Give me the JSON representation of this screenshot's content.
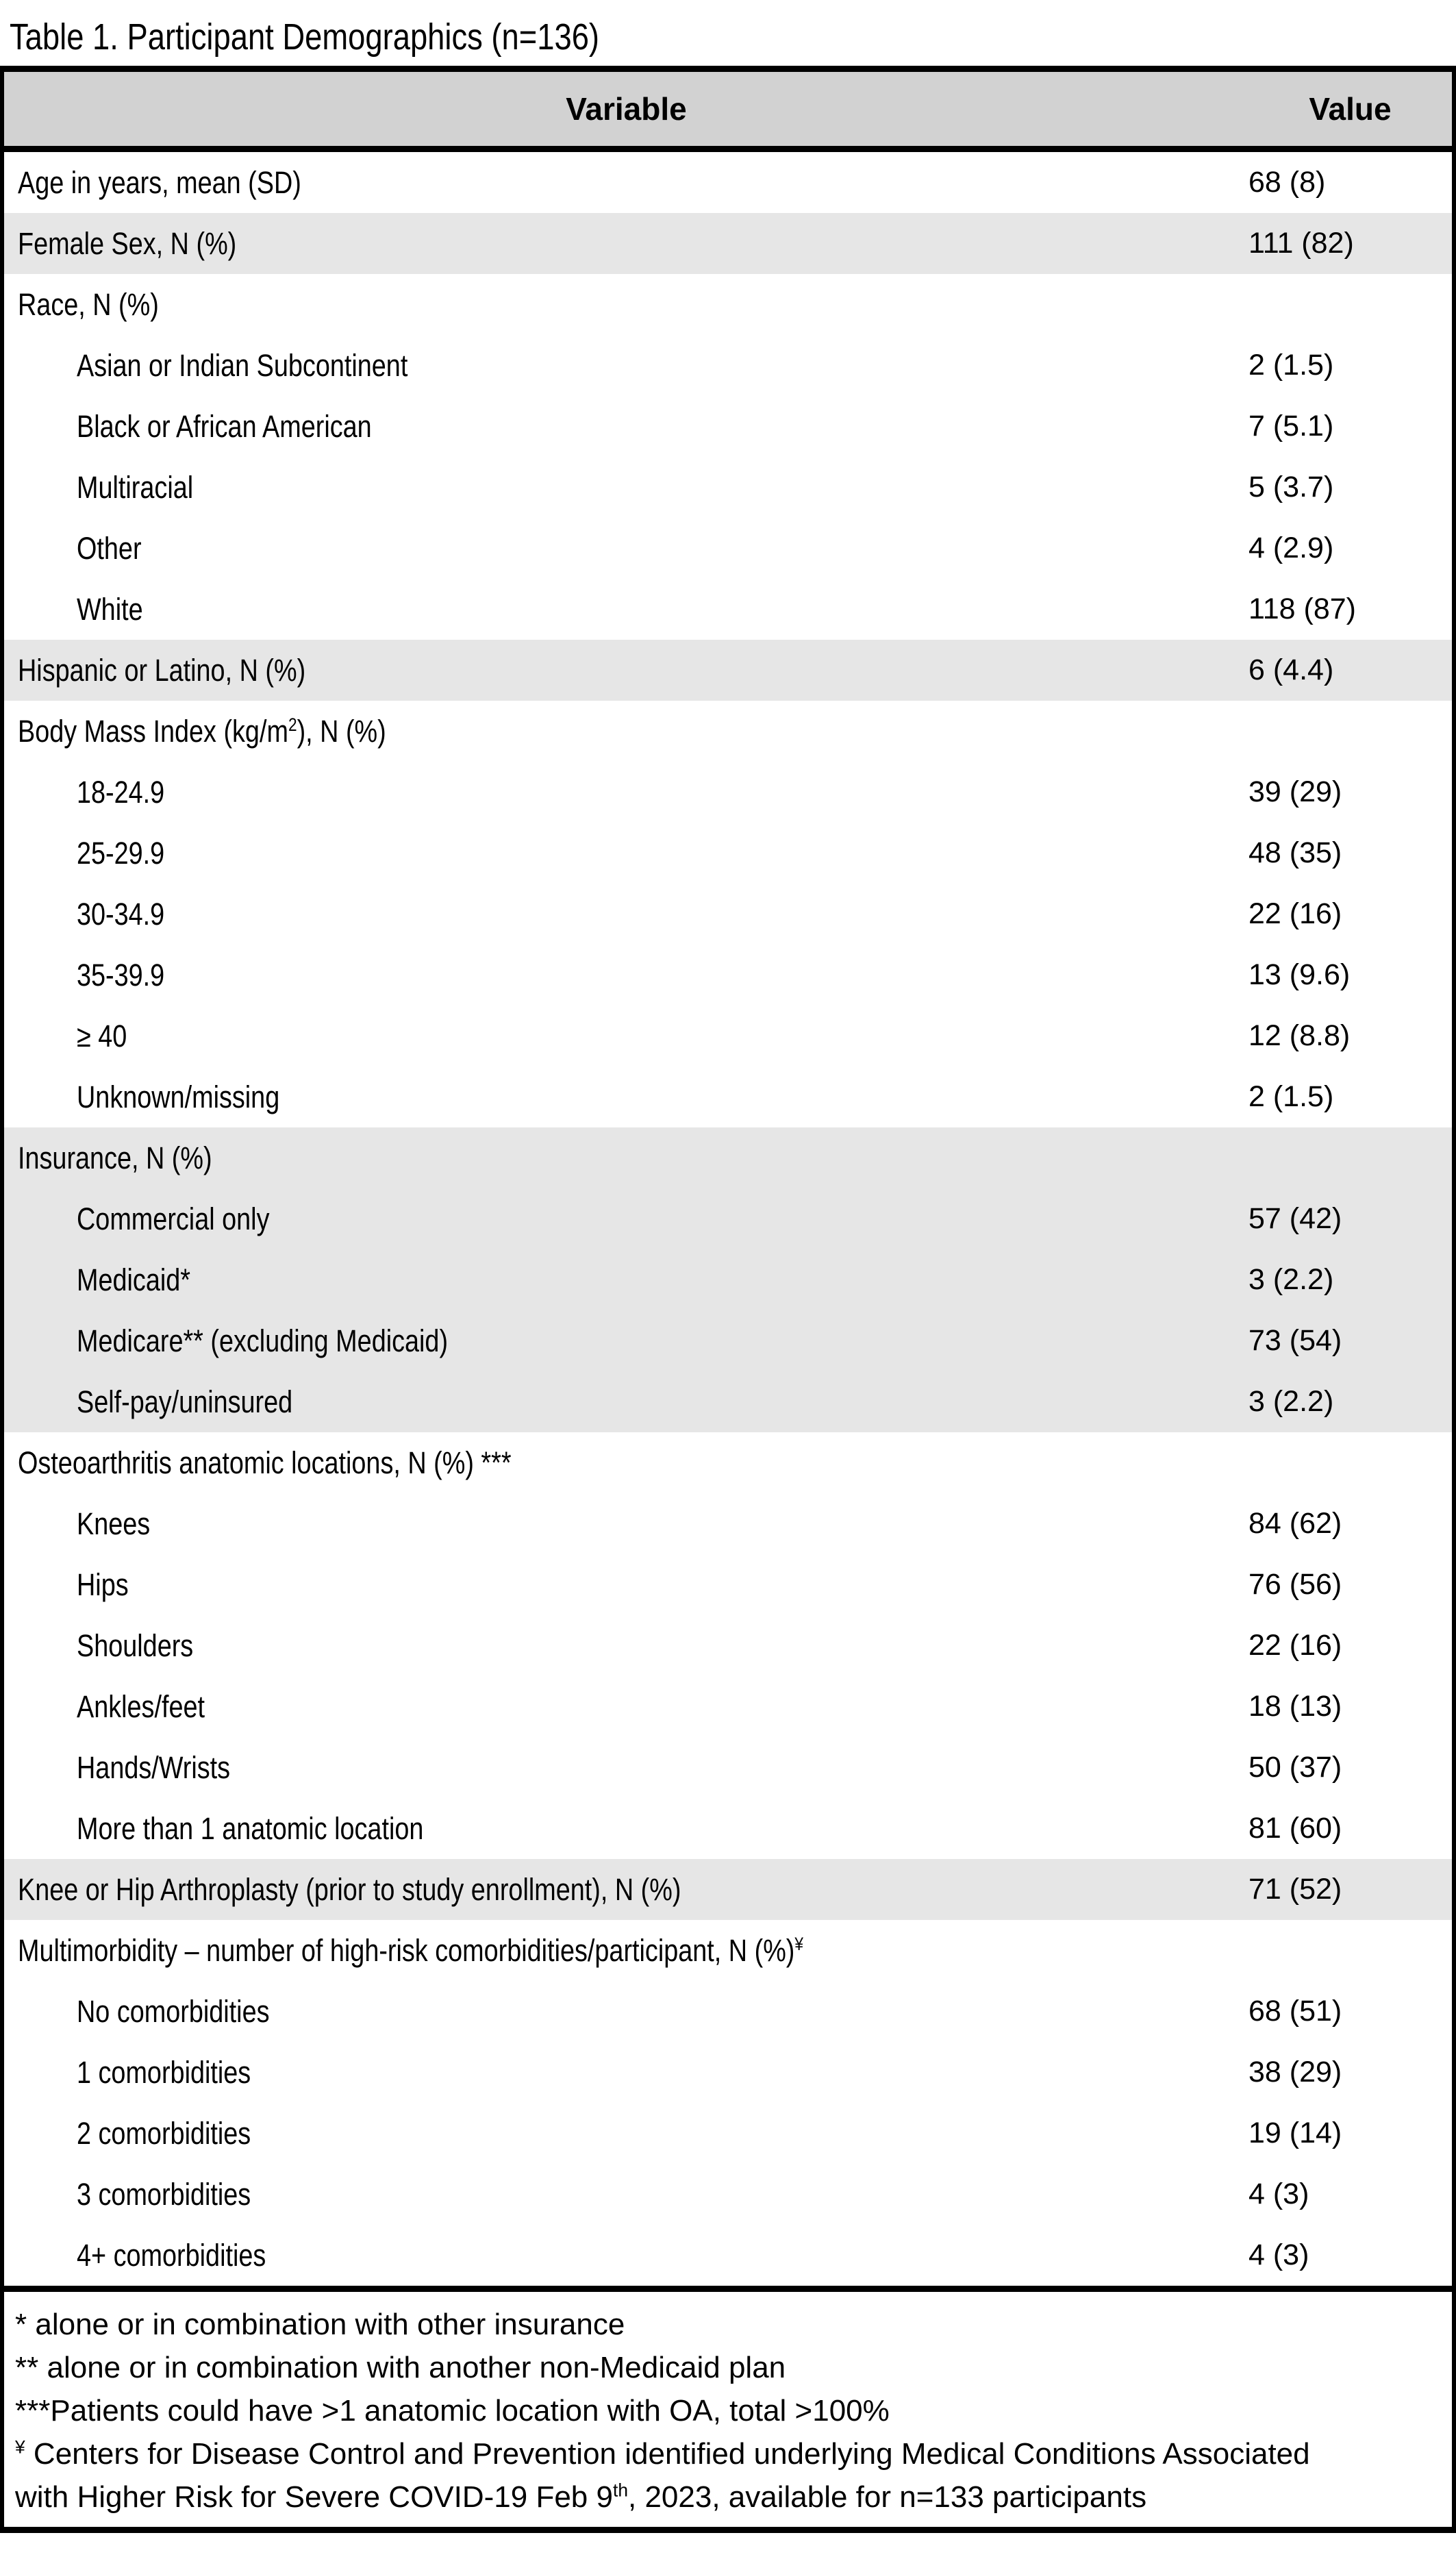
{
  "title": "Table 1. Participant Demographics (n=136)",
  "colors": {
    "header_bg": "#d2d2d2",
    "band_bg": "#e6e6e6",
    "border": "#000000"
  },
  "table": {
    "columns": [
      "Variable",
      "Value"
    ],
    "rows": [
      {
        "label": "Age in years, mean (SD)",
        "value": "68 (8)",
        "indent": false,
        "shaded": false
      },
      {
        "label": "Female Sex, N (%)",
        "value": "111 (82)",
        "indent": false,
        "shaded": true
      },
      {
        "label": "Race, N (%)",
        "value": "",
        "indent": false,
        "shaded": false
      },
      {
        "label": "Asian or Indian Subcontinent",
        "value": "2 (1.5)",
        "indent": true,
        "shaded": false
      },
      {
        "label": "Black or African American",
        "value": "7 (5.1)",
        "indent": true,
        "shaded": false
      },
      {
        "label": "Multiracial",
        "value": "5 (3.7)",
        "indent": true,
        "shaded": false
      },
      {
        "label": "Other",
        "value": "4 (2.9)",
        "indent": true,
        "shaded": false
      },
      {
        "label": "White",
        "value": "118 (87)",
        "indent": true,
        "shaded": false
      },
      {
        "label": "Hispanic or Latino, N (%)",
        "value": "6 (4.4)",
        "indent": false,
        "shaded": true
      },
      {
        "label": "Body Mass Index (kg/m^{2}), N (%)",
        "value": "",
        "indent": false,
        "shaded": false
      },
      {
        "label": "18-24.9",
        "value": "39 (29)",
        "indent": true,
        "shaded": false
      },
      {
        "label": "25-29.9",
        "value": "48 (35)",
        "indent": true,
        "shaded": false
      },
      {
        "label": "30-34.9",
        "value": "22 (16)",
        "indent": true,
        "shaded": false
      },
      {
        "label": "35-39.9",
        "value": "13 (9.6)",
        "indent": true,
        "shaded": false
      },
      {
        "label": "≥ 40",
        "value": "12 (8.8)",
        "indent": true,
        "shaded": false
      },
      {
        "label": "Unknown/missing",
        "value": "2 (1.5)",
        "indent": true,
        "shaded": false
      },
      {
        "label": "Insurance, N (%)",
        "value": "",
        "indent": false,
        "shaded": true
      },
      {
        "label": "Commercial only",
        "value": "57 (42)",
        "indent": true,
        "shaded": true
      },
      {
        "label": "Medicaid*",
        "value": "3 (2.2)",
        "indent": true,
        "shaded": true
      },
      {
        "label": "Medicare** (excluding Medicaid)",
        "value": "73 (54)",
        "indent": true,
        "shaded": true
      },
      {
        "label": "Self-pay/uninsured",
        "value": "3 (2.2)",
        "indent": true,
        "shaded": true
      },
      {
        "label": "Osteoarthritis anatomic locations, N (%) ***",
        "value": "",
        "indent": false,
        "shaded": false
      },
      {
        "label": "Knees",
        "value": "84 (62)",
        "indent": true,
        "shaded": false
      },
      {
        "label": "Hips",
        "value": "76 (56)",
        "indent": true,
        "shaded": false
      },
      {
        "label": "Shoulders",
        "value": "22 (16)",
        "indent": true,
        "shaded": false
      },
      {
        "label": "Ankles/feet",
        "value": "18 (13)",
        "indent": true,
        "shaded": false
      },
      {
        "label": "Hands/Wrists",
        "value": "50 (37)",
        "indent": true,
        "shaded": false
      },
      {
        "label": "More than 1 anatomic location",
        "value": "81 (60)",
        "indent": true,
        "shaded": false
      },
      {
        "label": "Knee or Hip Arthroplasty (prior to study enrollment), N (%)",
        "value": "71 (52)",
        "indent": false,
        "shaded": true
      },
      {
        "label": "Multimorbidity – number of high-risk comorbidities/participant, N (%)^{¥}",
        "value": "",
        "indent": false,
        "shaded": false
      },
      {
        "label": "No comorbidities",
        "value": "68 (51)",
        "indent": true,
        "shaded": false
      },
      {
        "label": "1 comorbidities",
        "value": "38 (29)",
        "indent": true,
        "shaded": false
      },
      {
        "label": "2 comorbidities",
        "value": "19 (14)",
        "indent": true,
        "shaded": false
      },
      {
        "label": "3 comorbidities",
        "value": "4 (3)",
        "indent": true,
        "shaded": false
      },
      {
        "label": "4+ comorbidities",
        "value": "4 (3)",
        "indent": true,
        "shaded": false
      }
    ],
    "footnotes": [
      "* alone or in combination with other insurance",
      "** alone or in combination with another non-Medicaid plan",
      "***Patients could have >1 anatomic location with OA, total >100%",
      "^{¥} Centers for Disease Control and Prevention identified underlying Medical Conditions Associated with Higher Risk for Severe COVID-19 Feb 9^{th}, 2023, available for n=133 participants"
    ]
  }
}
